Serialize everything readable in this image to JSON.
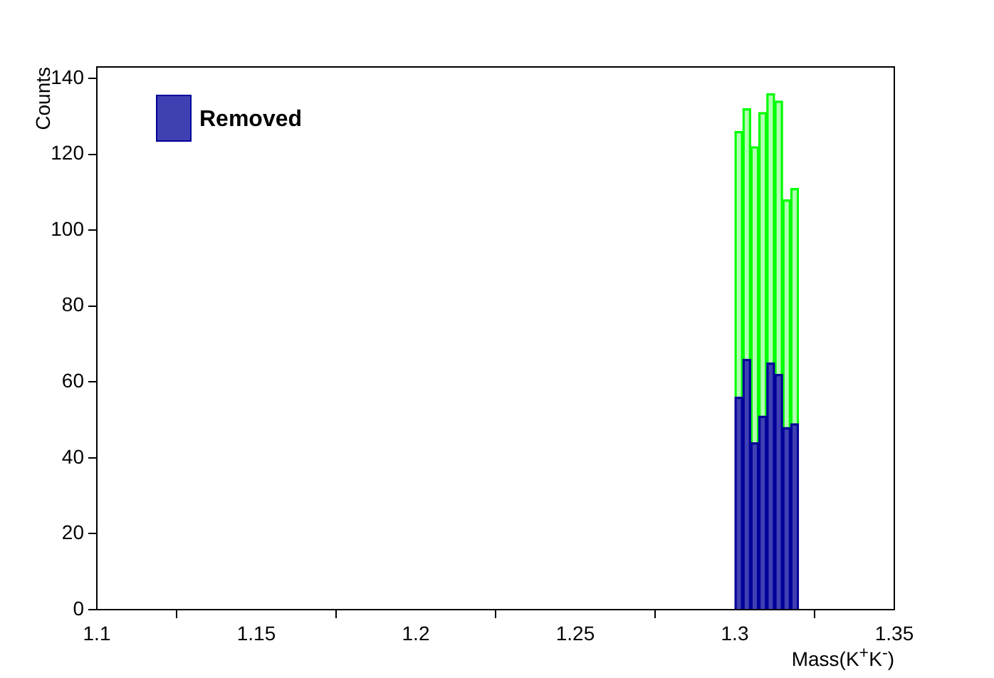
{
  "chart_data": {
    "type": "bar",
    "xlabel": "Mass(K$^{+}$K$^{-}$)",
    "ylabel": "Counts",
    "x": [
      1.30125,
      1.30375,
      1.30625,
      1.30875,
      1.31125,
      1.31375,
      1.31625,
      1.31875
    ],
    "stacked": true,
    "series": [
      {
        "name": "Removed",
        "color": "#000099",
        "values": [
          56,
          66,
          44,
          51,
          65,
          62,
          48,
          49
        ]
      },
      {
        "color": "#00ff00",
        "values": [
          70,
          66,
          78,
          80,
          71,
          72,
          60,
          62
        ]
      }
    ],
    "xlim": [
      1.1,
      1.35
    ],
    "xticks": [
      1.1,
      1.15,
      1.2,
      1.25,
      1.3,
      1.35
    ],
    "ylim": [
      0,
      143
    ],
    "yticks": [
      0,
      20,
      40,
      60,
      80,
      100,
      120,
      140
    ],
    "grid": false,
    "legend": "top left"
  }
}
